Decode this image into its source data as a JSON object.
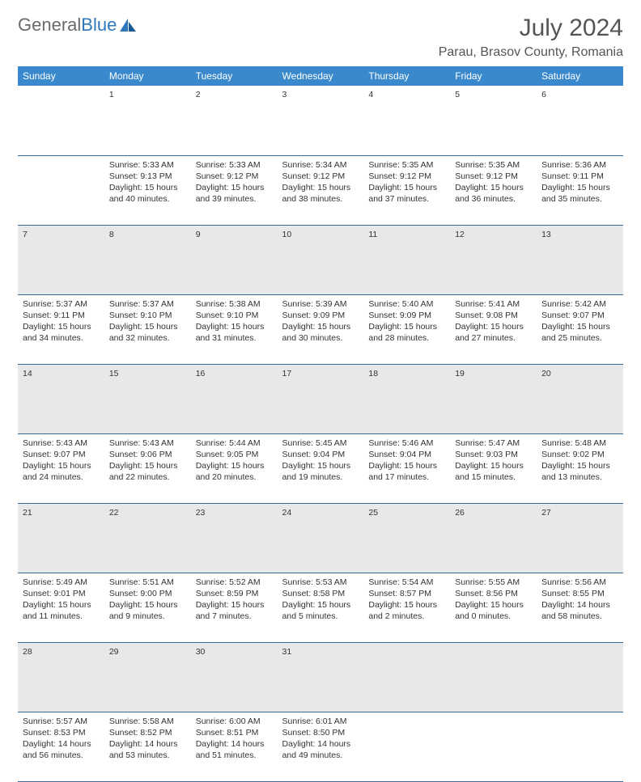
{
  "logo": {
    "text1": "General",
    "text2": "Blue"
  },
  "title": "July 2024",
  "location": "Parau, Brasov County, Romania",
  "colors": {
    "header_bg": "#3a89cc",
    "header_text": "#ffffff",
    "daynum_bg": "#e8e8e8",
    "border": "#3a6a9a",
    "body_text": "#333333",
    "title_text": "#555555",
    "logo_gray": "#6b6b6b",
    "logo_blue": "#2f77bb"
  },
  "weekdays": [
    "Sunday",
    "Monday",
    "Tuesday",
    "Wednesday",
    "Thursday",
    "Friday",
    "Saturday"
  ],
  "weeks": [
    {
      "nums": [
        "",
        "1",
        "2",
        "3",
        "4",
        "5",
        "6"
      ],
      "cells": [
        "",
        "Sunrise: 5:33 AM\nSunset: 9:13 PM\nDaylight: 15 hours and 40 minutes.",
        "Sunrise: 5:33 AM\nSunset: 9:12 PM\nDaylight: 15 hours and 39 minutes.",
        "Sunrise: 5:34 AM\nSunset: 9:12 PM\nDaylight: 15 hours and 38 minutes.",
        "Sunrise: 5:35 AM\nSunset: 9:12 PM\nDaylight: 15 hours and 37 minutes.",
        "Sunrise: 5:35 AM\nSunset: 9:12 PM\nDaylight: 15 hours and 36 minutes.",
        "Sunrise: 5:36 AM\nSunset: 9:11 PM\nDaylight: 15 hours and 35 minutes."
      ]
    },
    {
      "nums": [
        "7",
        "8",
        "9",
        "10",
        "11",
        "12",
        "13"
      ],
      "cells": [
        "Sunrise: 5:37 AM\nSunset: 9:11 PM\nDaylight: 15 hours and 34 minutes.",
        "Sunrise: 5:37 AM\nSunset: 9:10 PM\nDaylight: 15 hours and 32 minutes.",
        "Sunrise: 5:38 AM\nSunset: 9:10 PM\nDaylight: 15 hours and 31 minutes.",
        "Sunrise: 5:39 AM\nSunset: 9:09 PM\nDaylight: 15 hours and 30 minutes.",
        "Sunrise: 5:40 AM\nSunset: 9:09 PM\nDaylight: 15 hours and 28 minutes.",
        "Sunrise: 5:41 AM\nSunset: 9:08 PM\nDaylight: 15 hours and 27 minutes.",
        "Sunrise: 5:42 AM\nSunset: 9:07 PM\nDaylight: 15 hours and 25 minutes."
      ]
    },
    {
      "nums": [
        "14",
        "15",
        "16",
        "17",
        "18",
        "19",
        "20"
      ],
      "cells": [
        "Sunrise: 5:43 AM\nSunset: 9:07 PM\nDaylight: 15 hours and 24 minutes.",
        "Sunrise: 5:43 AM\nSunset: 9:06 PM\nDaylight: 15 hours and 22 minutes.",
        "Sunrise: 5:44 AM\nSunset: 9:05 PM\nDaylight: 15 hours and 20 minutes.",
        "Sunrise: 5:45 AM\nSunset: 9:04 PM\nDaylight: 15 hours and 19 minutes.",
        "Sunrise: 5:46 AM\nSunset: 9:04 PM\nDaylight: 15 hours and 17 minutes.",
        "Sunrise: 5:47 AM\nSunset: 9:03 PM\nDaylight: 15 hours and 15 minutes.",
        "Sunrise: 5:48 AM\nSunset: 9:02 PM\nDaylight: 15 hours and 13 minutes."
      ]
    },
    {
      "nums": [
        "21",
        "22",
        "23",
        "24",
        "25",
        "26",
        "27"
      ],
      "cells": [
        "Sunrise: 5:49 AM\nSunset: 9:01 PM\nDaylight: 15 hours and 11 minutes.",
        "Sunrise: 5:51 AM\nSunset: 9:00 PM\nDaylight: 15 hours and 9 minutes.",
        "Sunrise: 5:52 AM\nSunset: 8:59 PM\nDaylight: 15 hours and 7 minutes.",
        "Sunrise: 5:53 AM\nSunset: 8:58 PM\nDaylight: 15 hours and 5 minutes.",
        "Sunrise: 5:54 AM\nSunset: 8:57 PM\nDaylight: 15 hours and 2 minutes.",
        "Sunrise: 5:55 AM\nSunset: 8:56 PM\nDaylight: 15 hours and 0 minutes.",
        "Sunrise: 5:56 AM\nSunset: 8:55 PM\nDaylight: 14 hours and 58 minutes."
      ]
    },
    {
      "nums": [
        "28",
        "29",
        "30",
        "31",
        "",
        "",
        ""
      ],
      "cells": [
        "Sunrise: 5:57 AM\nSunset: 8:53 PM\nDaylight: 14 hours and 56 minutes.",
        "Sunrise: 5:58 AM\nSunset: 8:52 PM\nDaylight: 14 hours and 53 minutes.",
        "Sunrise: 6:00 AM\nSunset: 8:51 PM\nDaylight: 14 hours and 51 minutes.",
        "Sunrise: 6:01 AM\nSunset: 8:50 PM\nDaylight: 14 hours and 49 minutes.",
        "",
        "",
        ""
      ]
    }
  ]
}
